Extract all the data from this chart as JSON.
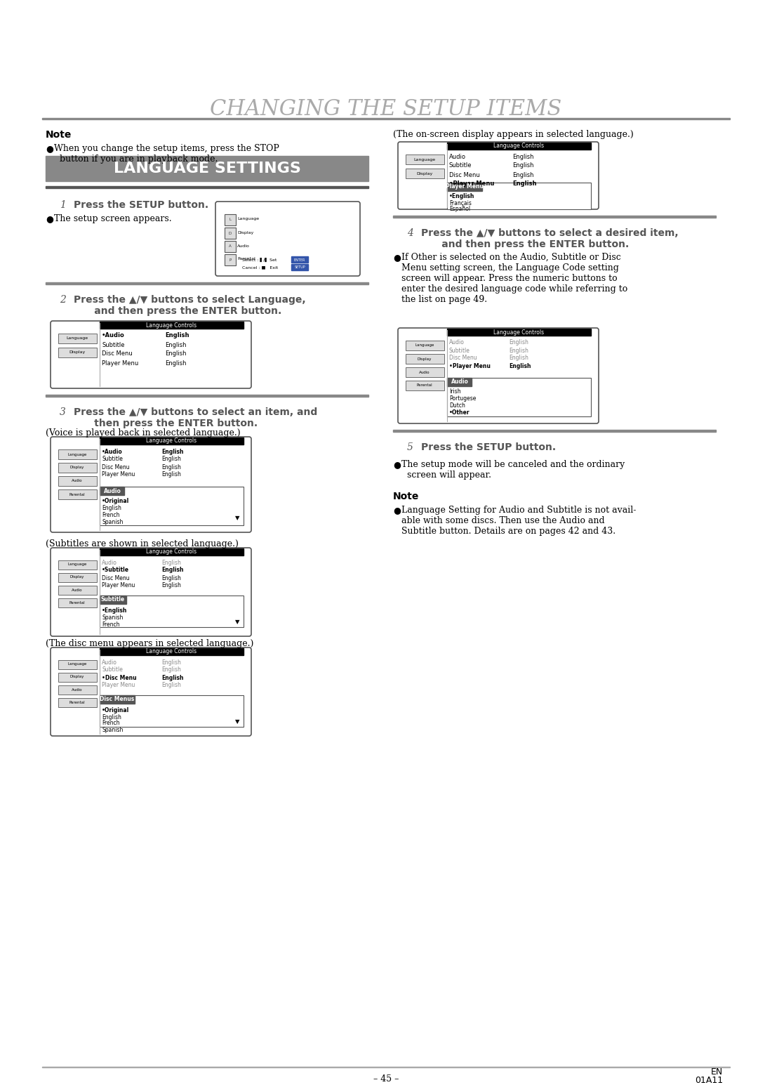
{
  "title": "CHANGING THE SETUP ITEMS",
  "section_title": "LANGUAGE SETTINGS",
  "bg_color": "#ffffff",
  "title_color": "#aaaaaa",
  "section_bg": "#888888",
  "section_text_color": "#ffffff",
  "divider_color": "#888888",
  "note_bold": "Note",
  "note_bullet": "When you change the setup items, press the STOP\n  button if you are in playback mode.",
  "step1_num": "1",
  "step1_text": "Press the SETUP button.",
  "step1_bullet": "The setup screen appears.",
  "step2_num": "2",
  "step2_text": "Press the ▲/▼ buttons to select Language,\n      and then press the ENTER button.",
  "step3_num": "3",
  "step3_text": "Press the ▲/▼ buttons to select an item, and\n      then press the ENTER button.",
  "step3_sub1": "(Voice is played back in selected language.)",
  "step3_sub2": "(Subtitles are shown in selected language.)",
  "step3_sub3": "(The disc menu appears in selected language.)",
  "step4_num": "4",
  "step4_text": "Press the ▲/▼ buttons to select a desired item,\n      and then press the ENTER button.",
  "step4_note": "If Other is selected on the Audio, Subtitle or Disc\nMenu setting screen, the Language Code setting\nscreen will appear. Press the numeric buttons to\nenter the desired language code while referring to\nthe list on page 49.",
  "step5_num": "5",
  "step5_text": "Press the SETUP button.",
  "step5_bullet": "The setup mode will be canceled and the ordinary\n  screen will appear.",
  "right_note_bold": "Note",
  "right_note_bullet": "Language Setting for Audio and Subtitle is not avail-\nable with some discs. Then use the Audio and\nSubtitle button. Details are on pages 42 and 43.",
  "right_top_caption": "(The on-screen display appears in selected language.)",
  "footer_left": "– 45 –",
  "footer_right": "EN\n01A11"
}
